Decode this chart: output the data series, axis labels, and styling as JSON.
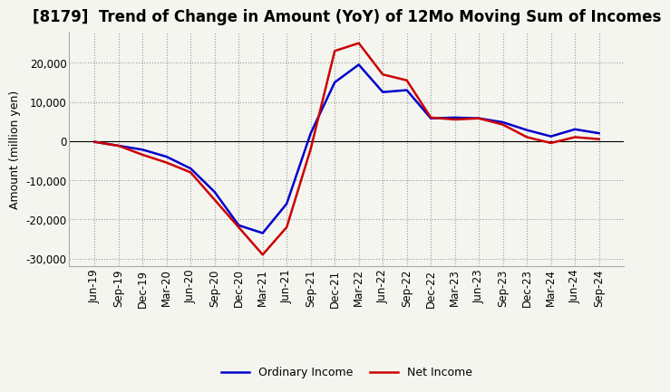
{
  "title": "[8179]  Trend of Change in Amount (YoY) of 12Mo Moving Sum of Incomes",
  "ylabel": "Amount (million yen)",
  "x_labels": [
    "Jun-19",
    "Sep-19",
    "Dec-19",
    "Mar-20",
    "Jun-20",
    "Sep-20",
    "Dec-20",
    "Mar-21",
    "Jun-21",
    "Sep-21",
    "Dec-21",
    "Mar-22",
    "Jun-22",
    "Sep-22",
    "Dec-22",
    "Mar-23",
    "Jun-23",
    "Sep-23",
    "Dec-23",
    "Mar-24",
    "Jun-24",
    "Sep-24"
  ],
  "ordinary_income": [
    -200,
    -1200,
    -2200,
    -4000,
    -7000,
    -13000,
    -21500,
    -23500,
    -16000,
    2000,
    15000,
    19500,
    12500,
    13000,
    5800,
    6000,
    5800,
    4800,
    2800,
    1200,
    3000,
    2000
  ],
  "net_income": [
    -200,
    -1200,
    -3500,
    -5500,
    -8000,
    -15000,
    -22000,
    -29000,
    -22000,
    -2000,
    23000,
    25000,
    17000,
    15500,
    6000,
    5500,
    5800,
    4200,
    1000,
    -500,
    1000,
    500
  ],
  "ordinary_income_color": "#0000cc",
  "net_income_color": "#cc0000",
  "ylim": [
    -32000,
    28000
  ],
  "yticks": [
    -30000,
    -20000,
    -10000,
    0,
    10000,
    20000
  ],
  "background_color": "#f5f5f0",
  "plot_bg_color": "#f5f5f0",
  "grid_color": "#999999",
  "title_fontsize": 12,
  "axis_fontsize": 9,
  "tick_fontsize": 8.5,
  "legend_fontsize": 9,
  "line_width": 1.8
}
